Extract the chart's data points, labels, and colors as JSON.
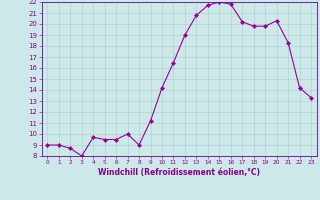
{
  "x": [
    0,
    1,
    2,
    3,
    4,
    5,
    6,
    7,
    8,
    9,
    10,
    11,
    12,
    13,
    14,
    15,
    16,
    17,
    18,
    19,
    20,
    21,
    22,
    23
  ],
  "y": [
    9,
    9,
    8.7,
    8,
    9.7,
    9.5,
    9.5,
    10,
    9,
    11.2,
    14.2,
    16.5,
    19,
    20.8,
    21.7,
    22,
    21.8,
    20.2,
    19.8,
    19.8,
    20.3,
    18.3,
    14.2,
    13.3
  ],
  "line_color": "#990099",
  "marker": "D",
  "marker_size": 2,
  "bg_color": "#cce8e8",
  "grid_color": "#aacccc",
  "xlabel": "Windchill (Refroidissement éolien,°C)",
  "ylabel": "",
  "ylim": [
    8,
    22
  ],
  "xlim": [
    -0.5,
    23.5
  ],
  "yticks": [
    8,
    9,
    10,
    11,
    12,
    13,
    14,
    15,
    16,
    17,
    18,
    19,
    20,
    21,
    22
  ],
  "xticks": [
    0,
    1,
    2,
    3,
    4,
    5,
    6,
    7,
    8,
    9,
    10,
    11,
    12,
    13,
    14,
    15,
    16,
    17,
    18,
    19,
    20,
    21,
    22,
    23
  ],
  "tick_color": "#880088",
  "label_color": "#880088",
  "axis_color": "#880088",
  "spine_color": "#6600aa",
  "xlabel_fontsize": 5.5,
  "ytick_fontsize": 5,
  "xtick_fontsize": 4.2
}
